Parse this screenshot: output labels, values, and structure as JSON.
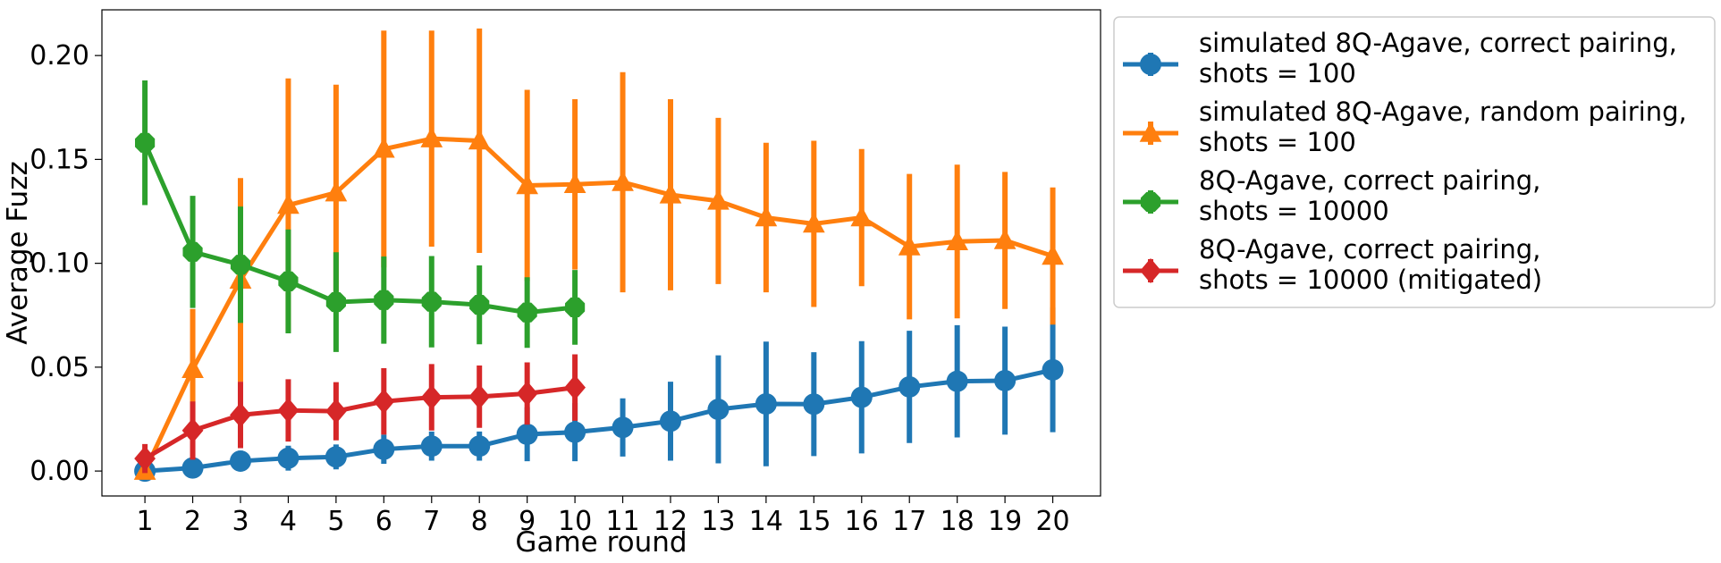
{
  "chart_data": {
    "type": "line",
    "title": "",
    "xlabel": "Game round",
    "ylabel": "Average Fuzz",
    "xlim": [
      0.1,
      21
    ],
    "ylim": [
      -0.012,
      0.222
    ],
    "xticks": [
      1,
      2,
      3,
      4,
      5,
      6,
      7,
      8,
      9,
      10,
      11,
      12,
      13,
      14,
      15,
      16,
      17,
      18,
      19,
      20
    ],
    "yticks": [
      0.0,
      0.05,
      0.1,
      0.15,
      0.2
    ],
    "ytick_labels": [
      "0.00",
      "0.05",
      "0.10",
      "0.15",
      "0.20"
    ],
    "grid": false,
    "legend_position": "outside-right-top",
    "series": [
      {
        "name": "simulated 8Q-Agave, correct pairing,\nshots = 100",
        "color": "#1f77b4",
        "marker": "circle",
        "x": [
          1,
          2,
          3,
          4,
          5,
          6,
          7,
          8,
          9,
          10,
          11,
          12,
          13,
          14,
          15,
          16,
          17,
          18,
          19,
          20
        ],
        "y": [
          0.0,
          0.0015,
          0.0048,
          0.0062,
          0.0068,
          0.0105,
          0.012,
          0.012,
          0.0177,
          0.0187,
          0.021,
          0.024,
          0.0297,
          0.0323,
          0.0322,
          0.0355,
          0.0405,
          0.0432,
          0.0435,
          0.0487
        ],
        "err": [
          0.0,
          0.002,
          0.005,
          0.006,
          0.006,
          0.007,
          0.007,
          0.007,
          0.013,
          0.014,
          0.014,
          0.019,
          0.026,
          0.03,
          0.025,
          0.027,
          0.027,
          0.027,
          0.026,
          0.03
        ]
      },
      {
        "name": "simulated 8Q-Agave, random pairing,\nshots = 100",
        "color": "#ff7f0e",
        "marker": "triangle",
        "x": [
          1,
          2,
          3,
          4,
          5,
          6,
          7,
          8,
          9,
          10,
          11,
          12,
          13,
          14,
          15,
          16,
          17,
          18,
          19,
          20
        ],
        "y": [
          0.0,
          0.049,
          0.092,
          0.128,
          0.134,
          0.155,
          0.16,
          0.159,
          0.1375,
          0.138,
          0.139,
          0.133,
          0.13,
          0.122,
          0.119,
          0.122,
          0.108,
          0.1105,
          0.111,
          0.1035
        ],
        "err": [
          0.002,
          0.029,
          0.049,
          0.061,
          0.052,
          0.057,
          0.052,
          0.054,
          0.046,
          0.041,
          0.053,
          0.046,
          0.04,
          0.036,
          0.04,
          0.033,
          0.035,
          0.037,
          0.033,
          0.033
        ]
      },
      {
        "name": "8Q-Agave, correct pairing,\nshots = 10000",
        "color": "#2ca02c",
        "marker": "octagon",
        "x": [
          1,
          2,
          3,
          4,
          5,
          6,
          7,
          8,
          9,
          10
        ],
        "y": [
          0.158,
          0.1055,
          0.0993,
          0.0913,
          0.0813,
          0.0823,
          0.0815,
          0.08,
          0.0763,
          0.0788
        ],
        "err": [
          0.03,
          0.027,
          0.028,
          0.025,
          0.024,
          0.021,
          0.022,
          0.019,
          0.017,
          0.018
        ]
      },
      {
        "name": "8Q-Agave, correct pairing,\nshots = 10000 (mitigated)",
        "color": "#d62728",
        "marker": "diamond",
        "x": [
          1,
          2,
          3,
          4,
          5,
          6,
          7,
          8,
          9,
          10
        ],
        "y": [
          0.006,
          0.0195,
          0.027,
          0.0292,
          0.0288,
          0.0335,
          0.0355,
          0.0358,
          0.0373,
          0.0402
        ],
        "err": [
          0.007,
          0.014,
          0.016,
          0.015,
          0.014,
          0.016,
          0.016,
          0.015,
          0.015,
          0.016
        ]
      }
    ]
  }
}
